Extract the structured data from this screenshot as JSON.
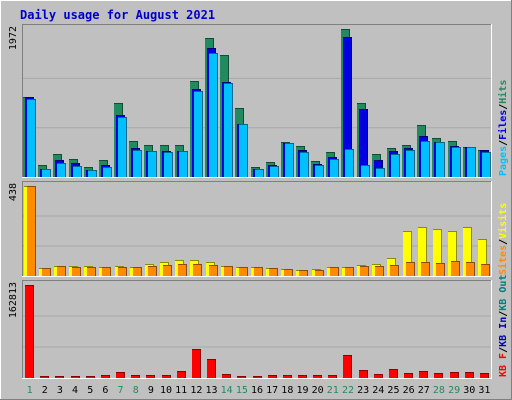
{
  "chart_data": {
    "type": "bar",
    "title": "Daily usage for August 2021",
    "categories": [
      "1",
      "2",
      "3",
      "4",
      "5",
      "6",
      "7",
      "8",
      "9",
      "10",
      "11",
      "12",
      "13",
      "14",
      "15",
      "16",
      "17",
      "18",
      "19",
      "20",
      "21",
      "22",
      "23",
      "24",
      "25",
      "26",
      "27",
      "28",
      "29",
      "30",
      "31"
    ],
    "weekend_days": [
      "1",
      "7",
      "8",
      "14",
      "15",
      "21",
      "22",
      "28",
      "29"
    ],
    "colors": {
      "title": "#0000cc",
      "background": "#c0c0c0",
      "hits": "#218a5e",
      "files": "#0000e0",
      "pages": "#00c0ff",
      "visits": "#ffff00",
      "sites": "#ff8c00",
      "kb_in": "#0000c0",
      "kb_out": "#007f7f",
      "kb_f": "#ff0000",
      "weekend_label": "#218a5e",
      "weekday_label": "#000000"
    },
    "panels": [
      {
        "id": "hits-files-pages",
        "ymax": 1972,
        "ymax_label": "1972",
        "legend": [
          {
            "text": "Pages",
            "color": "#00c0ff"
          },
          {
            "text": "/",
            "color": "#000000"
          },
          {
            "text": "Files",
            "color": "#0000e0"
          },
          {
            "text": "/",
            "color": "#000000"
          },
          {
            "text": "Hits",
            "color": "#218a5e"
          }
        ],
        "series": [
          {
            "name": "Hits",
            "color": "#218a5e",
            "values": [
              1060,
              160,
              300,
              240,
              130,
              220,
              980,
              480,
              420,
              420,
              420,
              1280,
              1850,
              1620,
              920,
              130,
              200,
              470,
              410,
              210,
              330,
              1972,
              980,
              310,
              380,
              420,
              690,
              520,
              480,
              400,
              360
            ]
          },
          {
            "name": "Files",
            "color": "#0000e0",
            "values": [
              1060,
              100,
              220,
              180,
              90,
              160,
              820,
              380,
              340,
              340,
              340,
              1170,
              1720,
              1270,
              710,
              100,
              160,
              450,
              360,
              170,
              270,
              1860,
              910,
              230,
              340,
              380,
              550,
              470,
              410,
              400,
              360
            ]
          },
          {
            "name": "Pages",
            "color": "#00c0ff",
            "values": [
              1040,
              100,
              180,
              150,
              90,
              130,
              800,
              360,
              340,
              330,
              340,
              1140,
              1650,
              1250,
              700,
              100,
              150,
              450,
              330,
              160,
              240,
              370,
              160,
              120,
              300,
              360,
              480,
              470,
              400,
              400,
              330
            ]
          }
        ]
      },
      {
        "id": "visits-sites",
        "ymax": 438,
        "ymax_label": "438",
        "legend": [
          {
            "text": "Sites",
            "color": "#ff8c00"
          },
          {
            "text": "/",
            "color": "#000000"
          },
          {
            "text": "Visits",
            "color": "#ffff00"
          }
        ],
        "series": [
          {
            "name": "Visits",
            "color": "#ffff00",
            "values": [
              438,
              40,
              50,
              50,
              48,
              45,
              48,
              45,
              60,
              70,
              80,
              80,
              70,
              50,
              45,
              42,
              40,
              36,
              28,
              34,
              45,
              45,
              55,
              60,
              90,
              220,
              240,
              230,
              220,
              240,
              180
            ]
          },
          {
            "name": "Sites",
            "color": "#ff8c00",
            "values": [
              438,
              40,
              50,
              45,
              42,
              45,
              45,
              42,
              48,
              52,
              60,
              60,
              55,
              48,
              42,
              42,
              38,
              34,
              28,
              30,
              42,
              45,
              48,
              50,
              55,
              70,
              70,
              65,
              75,
              70,
              60
            ]
          }
        ]
      },
      {
        "id": "kbytes",
        "ymax": 162813,
        "ymax_label": "162813",
        "legend": [
          {
            "text": "KB F",
            "color": "#ff0000"
          },
          {
            "text": "/",
            "color": "#000000"
          },
          {
            "text": "KB In",
            "color": "#0000c0"
          },
          {
            "text": "/",
            "color": "#000000"
          },
          {
            "text": "KB Out",
            "color": "#007f7f"
          }
        ],
        "series": [
          {
            "name": "KB F",
            "color": "#ff0000",
            "values": [
              162813,
              3500,
              3500,
              3500,
              3500,
              4500,
              11000,
              6000,
              6000,
              6000,
              12000,
              50000,
              33000,
              7000,
              4000,
              4000,
              5000,
              5000,
              5000,
              5000,
              5000,
              40000,
              14000,
              7000,
              15000,
              9000,
              13000,
              9000,
              10000,
              10000,
              9000
            ]
          }
        ]
      }
    ]
  }
}
